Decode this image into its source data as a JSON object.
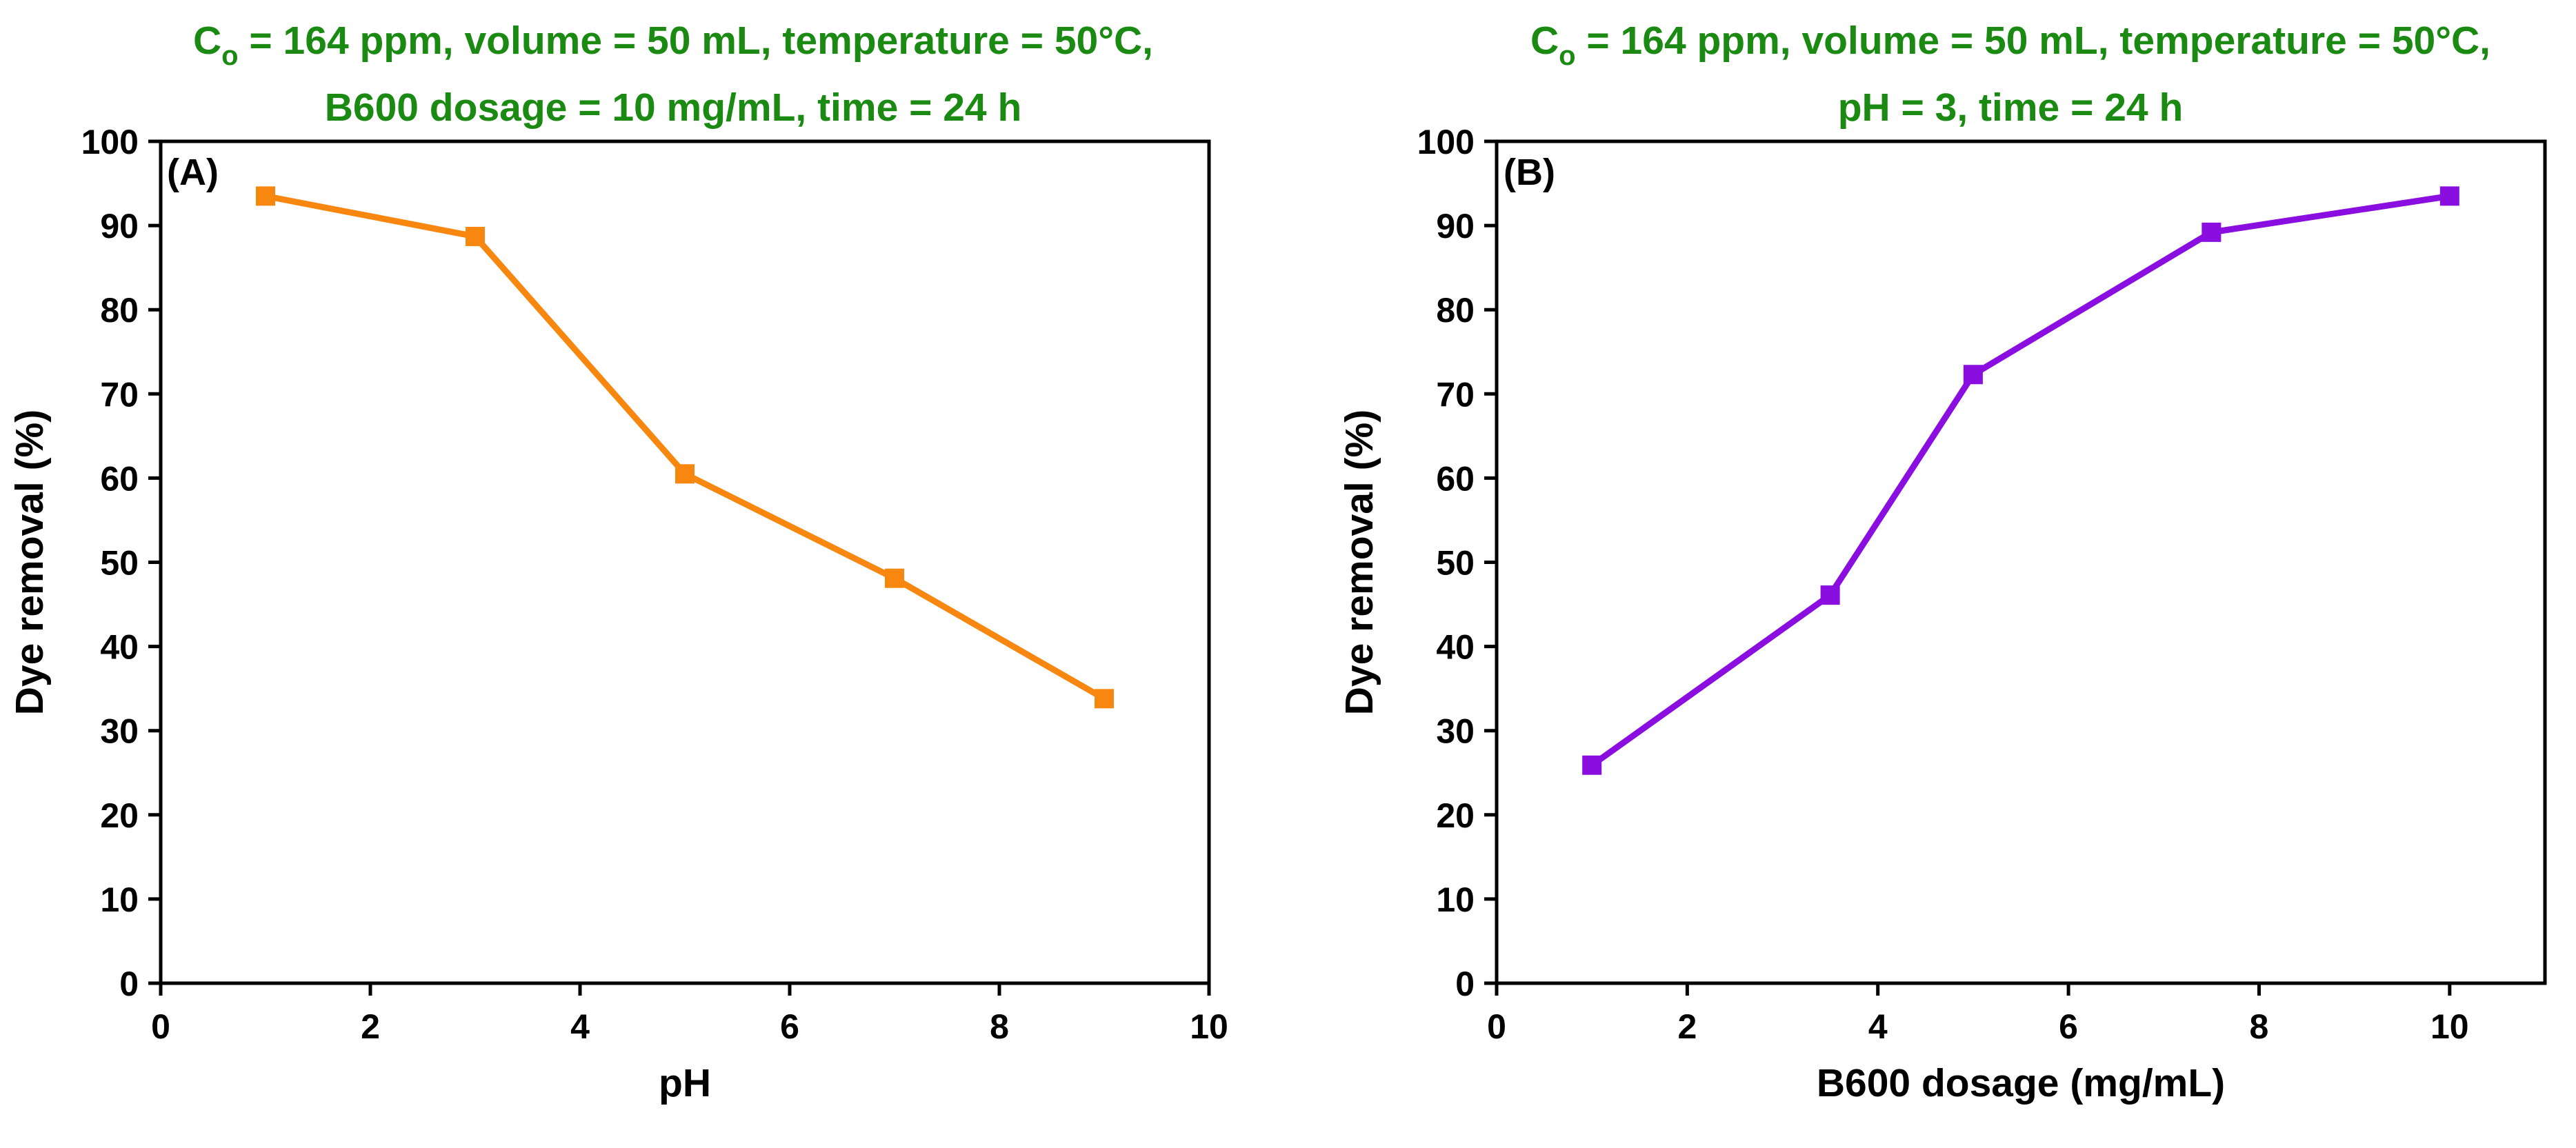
{
  "chart_data": [
    {
      "type": "line",
      "panel_label": "(A)",
      "conditions": {
        "line1_prefix": "C",
        "line1_subscript": "o",
        "line1_rest": " = 164 ppm, volume = 50 mL, temperature = 50°C,",
        "line2": "B600 dosage = 10 mg/mL, time = 24 h"
      },
      "xlabel": "pH",
      "ylabel": "Dye removal (%)",
      "xlim": [
        0,
        10
      ],
      "ylim": [
        0,
        100
      ],
      "x_ticks": [
        "0",
        "2",
        "4",
        "6",
        "8",
        "10"
      ],
      "y_ticks": [
        "0",
        "10",
        "20",
        "30",
        "40",
        "50",
        "60",
        "70",
        "80",
        "90",
        "100"
      ],
      "color": "#f7870f",
      "series": [
        {
          "name": "Dye removal vs pH",
          "x": [
            1,
            3,
            5,
            7,
            9
          ],
          "values": [
            93.5,
            88.7,
            60.5,
            48.1,
            33.8
          ]
        }
      ]
    },
    {
      "type": "line",
      "panel_label": "(B)",
      "conditions": {
        "line1_prefix": "C",
        "line1_subscript": "o",
        "line1_rest": " = 164 ppm, volume = 50 mL, temperature = 50°C,",
        "line2": "pH = 3, time = 24 h"
      },
      "xlabel": "B600 dosage (mg/mL)",
      "ylabel": "Dye removal (%)",
      "xlim": [
        0,
        11
      ],
      "ylim": [
        0,
        100
      ],
      "x_ticks": [
        "0",
        "2",
        "4",
        "6",
        "8",
        "10"
      ],
      "y_ticks": [
        "0",
        "10",
        "20",
        "30",
        "40",
        "50",
        "60",
        "70",
        "80",
        "90",
        "100"
      ],
      "color": "#8b0ee0",
      "series": [
        {
          "name": "Dye removal vs B600 dosage",
          "x": [
            1,
            3.5,
            5,
            7.5,
            10
          ],
          "values": [
            25.9,
            46.1,
            72.3,
            89.2,
            93.5
          ]
        }
      ]
    }
  ],
  "condition_color": "#1a8a12"
}
